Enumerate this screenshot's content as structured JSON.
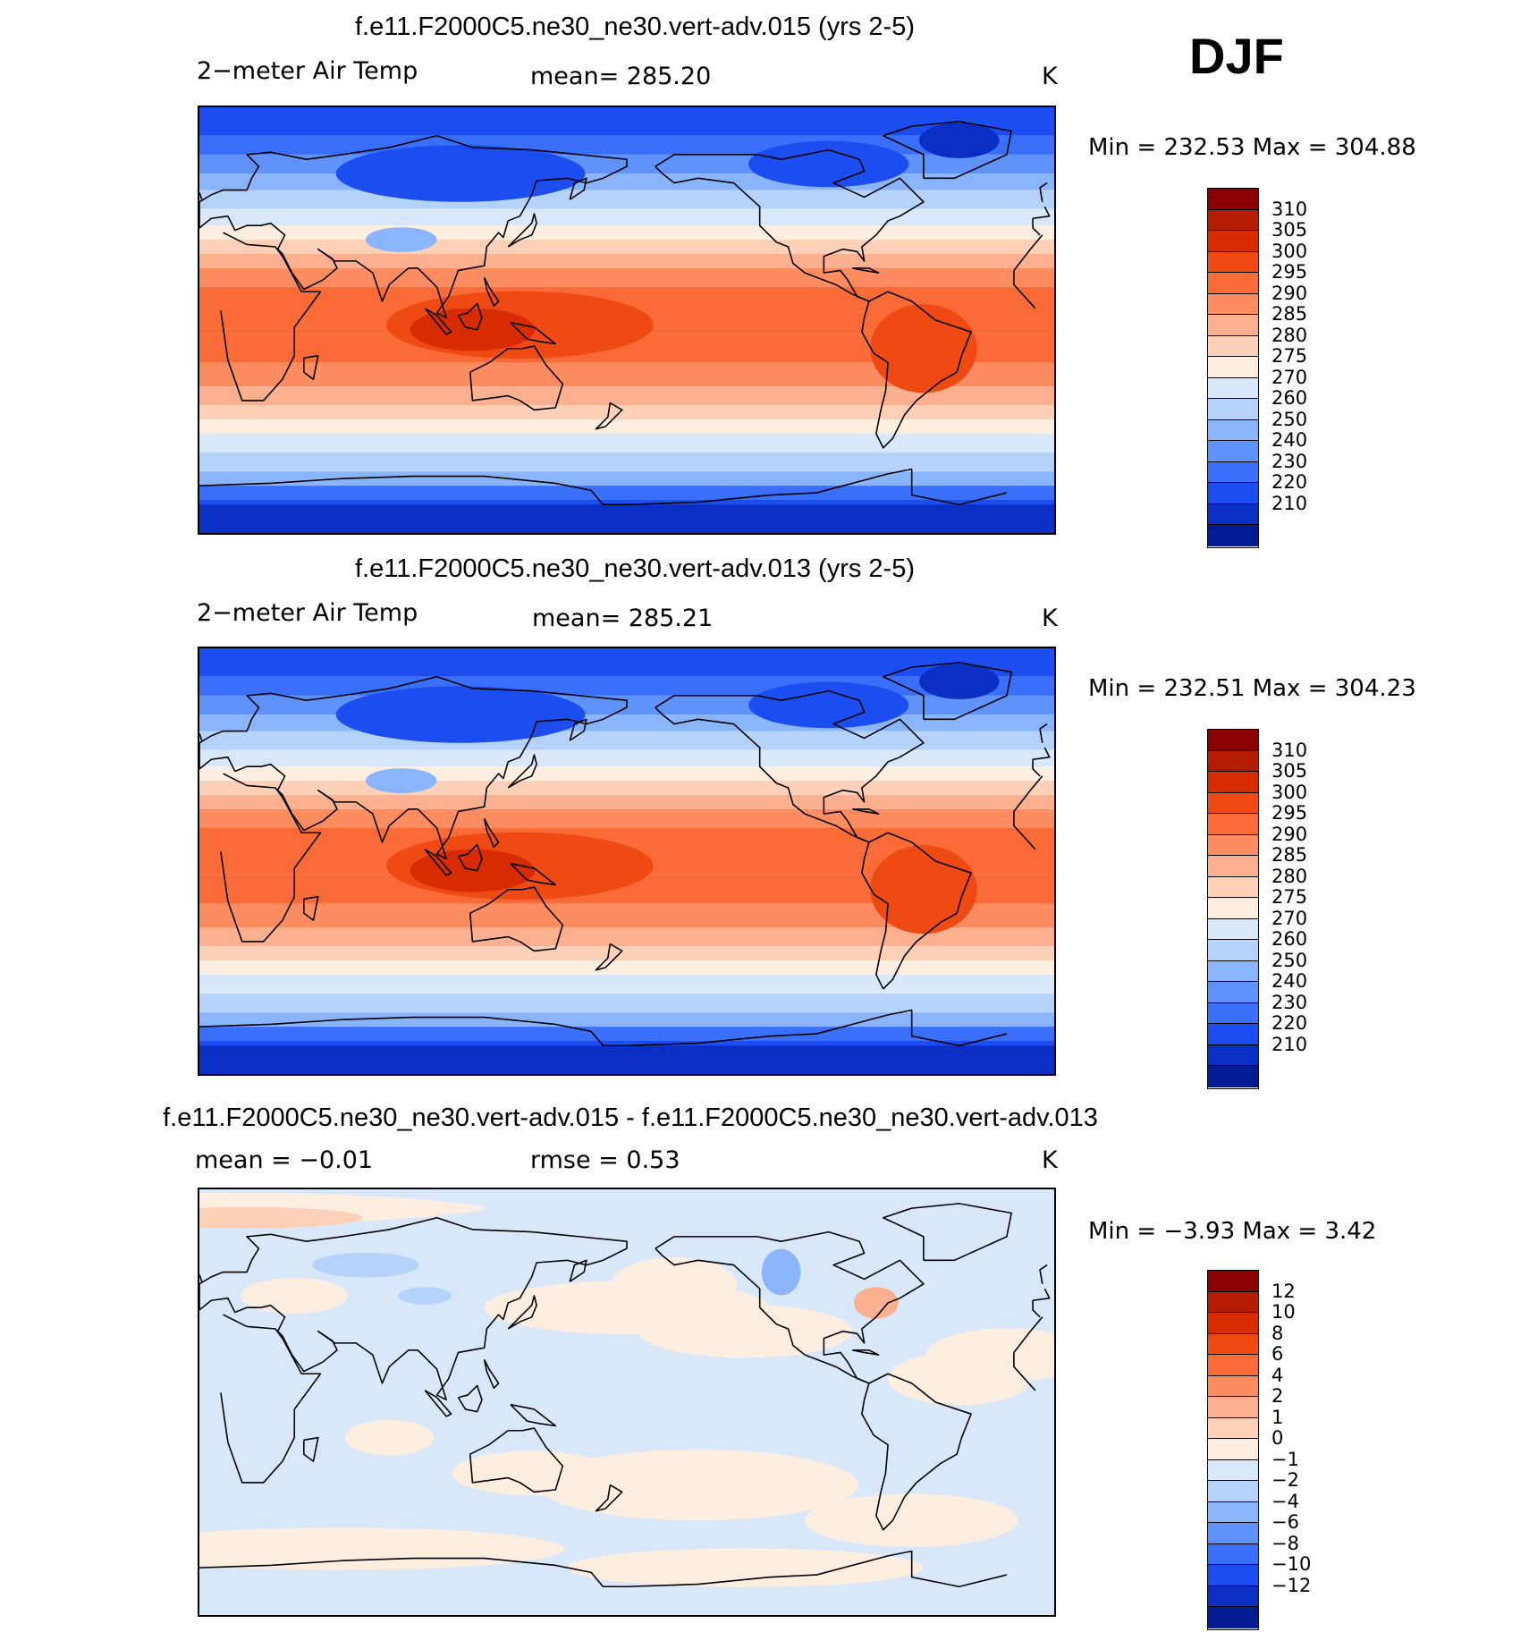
{
  "season": "DJF",
  "panels": [
    {
      "title": "f.e11.F2000C5.ne30_ne30.vert-adv.015 (yrs 2-5)",
      "left_label": "2−meter Air Temp",
      "stat_label": "mean=  285.20",
      "units": "K",
      "minmax": "Min  =  232.53  Max  =  304.88",
      "field": "absolute"
    },
    {
      "title": "f.e11.F2000C5.ne30_ne30.vert-adv.013 (yrs 2-5)",
      "left_label": "2−meter Air Temp",
      "stat_label": "mean=  285.21",
      "units": "K",
      "minmax": "Min  =  232.51  Max  =  304.23",
      "field": "absolute"
    },
    {
      "title": "f.e11.F2000C5.ne30_ne30.vert-adv.015 - f.e11.F2000C5.ne30_ne30.vert-adv.013",
      "left_label": "mean  =    −0.01",
      "stat_label": "rmse  =     0.53",
      "units": "K",
      "minmax": "Min  =    −3.93  Max  =     3.42",
      "field": "difference"
    }
  ],
  "colorbars": {
    "absolute": {
      "labels": [
        "310",
        "305",
        "300",
        "295",
        "290",
        "285",
        "280",
        "275",
        "270",
        "260",
        "250",
        "240",
        "230",
        "220",
        "210"
      ],
      "colors": [
        "#8b0000",
        "#b31c00",
        "#d92b00",
        "#f04a14",
        "#fb6b37",
        "#fd8c60",
        "#fdb08f",
        "#fdd1b7",
        "#fdeee0",
        "#d8e8fa",
        "#b5d2fb",
        "#8ab4fb",
        "#5f92fb",
        "#3a6ffb",
        "#1c4df0",
        "#0b2fc4",
        "#031c94"
      ]
    },
    "difference": {
      "labels": [
        "12",
        "10",
        "8",
        "6",
        "4",
        "2",
        "1",
        "0",
        "−1",
        "−2",
        "−4",
        "−6",
        "−8",
        "−10",
        "−12"
      ],
      "colors": [
        "#8b0000",
        "#b31c00",
        "#d92b00",
        "#f04a14",
        "#fb6b37",
        "#fd8c60",
        "#fdb08f",
        "#fdd1b7",
        "#fdeee0",
        "#d8e8fa",
        "#b5d2fb",
        "#8ab4fb",
        "#5f92fb",
        "#3a6ffb",
        "#1c4df0",
        "#0b2fc4",
        "#031c94"
      ]
    }
  }
}
